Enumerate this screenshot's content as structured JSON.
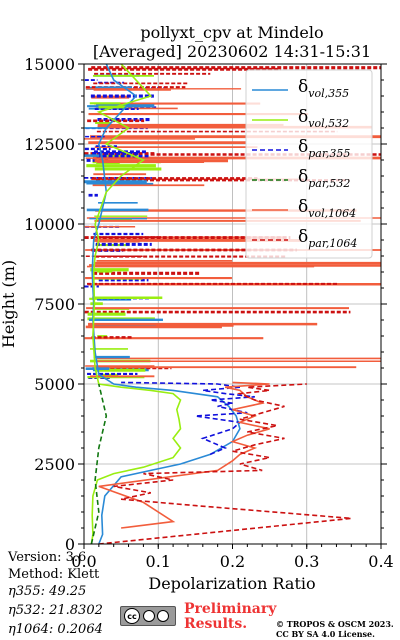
{
  "chart_data": {
    "type": "line",
    "title": "pollyxt_cpv at Mindelo",
    "subtitle": "[Averaged] 20230602 14:31-15:31",
    "xlabel": "Depolarization Ratio",
    "ylabel": "Height (m)",
    "xlim": [
      0.0,
      0.4
    ],
    "ylim": [
      0,
      15000
    ],
    "xticks": [
      "0.0",
      "0.1",
      "0.2",
      "0.3",
      "0.4"
    ],
    "yticks": [
      "0",
      "2500",
      "5000",
      "7500",
      "10000",
      "12500",
      "15000"
    ],
    "grid": true,
    "legend_position": "top-right",
    "series": [
      {
        "key": "vol355",
        "name_main": "δ",
        "name_sub": "vol,355",
        "color": "#2a8ad6",
        "dash": "solid",
        "x": [
          0.02,
          0.025,
          0.024,
          0.028,
          0.05,
          0.09,
          0.13,
          0.17,
          0.2,
          0.21,
          0.205,
          0.195,
          0.18,
          0.12,
          0.07,
          0.04,
          0.02,
          0.015,
          0.012,
          0.013,
          0.012,
          0.011,
          0.012,
          0.013,
          0.02,
          0.03,
          0.025,
          0.02,
          0.03,
          0.05,
          0.07,
          0.04,
          0.03
        ],
        "y": [
          0,
          300,
          900,
          1500,
          2100,
          2300,
          2500,
          2800,
          3200,
          3600,
          4000,
          4300,
          4600,
          4800,
          4900,
          5000,
          5300,
          6000,
          7000,
          7500,
          8000,
          8500,
          9000,
          9500,
          10000,
          11000,
          12000,
          12500,
          13000,
          13500,
          14000,
          14500,
          15000
        ]
      },
      {
        "key": "vol532",
        "name_main": "δ",
        "name_sub": "vol,532",
        "color": "#99ee11",
        "dash": "solid",
        "x": [
          0.01,
          0.012,
          0.011,
          0.012,
          0.018,
          0.04,
          0.08,
          0.12,
          0.13,
          0.12,
          0.13,
          0.128,
          0.125,
          0.13,
          0.12,
          0.09,
          0.05,
          0.02,
          0.015,
          0.012,
          0.014,
          0.013,
          0.015,
          0.02,
          0.015,
          0.03,
          0.05,
          0.08,
          0.03,
          0.06,
          0.02,
          0.09,
          0.05
        ],
        "y": [
          0,
          300,
          900,
          1500,
          2000,
          2200,
          2400,
          2700,
          3000,
          3300,
          3600,
          3900,
          4200,
          4500,
          4700,
          4800,
          4900,
          5000,
          5500,
          6500,
          7500,
          8500,
          9000,
          9500,
          10000,
          11000,
          11500,
          12000,
          12500,
          13000,
          13500,
          14000,
          15000
        ]
      },
      {
        "key": "par355",
        "name_main": "δ",
        "name_sub": "par,355",
        "color": "#1111dd",
        "dash": "dashed",
        "x": [
          0.17,
          0.19,
          0.16,
          0.2,
          0.21,
          0.15,
          0.22,
          0.18,
          0.2,
          0.17,
          0.23,
          0.19,
          0.16,
          0.21,
          0.18,
          0.05
        ],
        "y": [
          2800,
          3000,
          3300,
          3600,
          3800,
          4000,
          4100,
          4300,
          4400,
          4500,
          4600,
          4700,
          4800,
          4900,
          5000,
          5050
        ]
      },
      {
        "key": "par532",
        "name_main": "δ",
        "name_sub": "par,532",
        "color": "#117711",
        "dash": "dashed",
        "x": [
          0.01,
          0.02,
          0.015,
          0.02,
          0.03,
          0.02
        ],
        "y": [
          0,
          1000,
          2000,
          3000,
          4000,
          5000
        ]
      },
      {
        "key": "vol1064",
        "name_main": "δ",
        "name_sub": "vol,1064",
        "color": "#f25d3c",
        "dash": "solid",
        "x": [
          0.05,
          0.12,
          0.08,
          0.02,
          0.18,
          0.2,
          0.21,
          0.23,
          0.2,
          0.22,
          0.25,
          0.21,
          0.23,
          0.2,
          0.24,
          0.22,
          0.21,
          0.19,
          0.25,
          0.2
        ],
        "y": [
          500,
          700,
          1300,
          1800,
          2300,
          2600,
          2800,
          3000,
          3200,
          3400,
          3600,
          3800,
          4000,
          4200,
          4400,
          4600,
          4800,
          4900,
          5000,
          5050
        ]
      },
      {
        "key": "par1064",
        "name_main": "δ",
        "name_sub": "par,1064",
        "color": "#cc1111",
        "dash": "dashed",
        "x": [
          0.02,
          0.36,
          0.15,
          0.05,
          0.09,
          0.04,
          0.12,
          0.08,
          0.24,
          0.21,
          0.25,
          0.2,
          0.23,
          0.27,
          0.22,
          0.26,
          0.21,
          0.24,
          0.27,
          0.23,
          0.21,
          0.25,
          0.22,
          0.3
        ],
        "y": [
          0,
          800,
          1200,
          1400,
          1600,
          1800,
          2000,
          2200,
          2300,
          2500,
          2700,
          2900,
          3100,
          3300,
          3500,
          3700,
          3900,
          4100,
          4300,
          4500,
          4700,
          4800,
          4900,
          5000
        ]
      }
    ]
  },
  "footer": {
    "version": "Version: 3.6",
    "method": "Method: Klett",
    "eta355_label": "η355:  49.25",
    "eta532_label": "η532: 21.8302",
    "eta1064_label": "η1064: 0.2064",
    "prelim_line1": "Preliminary",
    "prelim_line2": "Results.",
    "copyright_line1": "© TROPOS & OSCM 2023.",
    "copyright_line2": "CC BY SA 4.0 License.",
    "license_badge": "cc-by-sa-icon"
  }
}
